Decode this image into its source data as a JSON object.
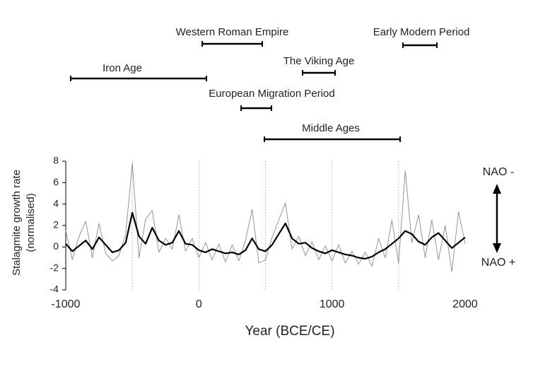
{
  "chart_data": {
    "type": "line",
    "xlabel": "Year (BCE/CE)",
    "ylabel": [
      "Stalagmite growth rate",
      "(normalised)"
    ],
    "annotations": {
      "top": "NAO -",
      "bottom": "NAO +"
    },
    "x": [
      -1000,
      -950,
      -900,
      -850,
      -800,
      -750,
      -700,
      -650,
      -600,
      -550,
      -500,
      -450,
      -400,
      -350,
      -300,
      -250,
      -200,
      -150,
      -100,
      -50,
      0,
      50,
      100,
      150,
      200,
      250,
      300,
      350,
      400,
      450,
      500,
      550,
      600,
      650,
      700,
      750,
      800,
      850,
      900,
      950,
      1000,
      1050,
      1100,
      1150,
      1200,
      1250,
      1300,
      1350,
      1400,
      1450,
      1500,
      1550,
      1600,
      1650,
      1700,
      1750,
      1800,
      1850,
      1900,
      1950,
      2000
    ],
    "series": [
      {
        "color": "#8a8a8a",
        "width": 0.9,
        "values": [
          1.5,
          -1.2,
          1.0,
          2.4,
          -1.0,
          2.2,
          -0.6,
          -1.3,
          -0.8,
          1.2,
          7.8,
          -1.0,
          2.6,
          3.4,
          -0.5,
          0.8,
          -0.2,
          3.0,
          -0.4,
          0.8,
          -1.0,
          0.4,
          -1.2,
          0.3,
          -1.4,
          0.2,
          -1.3,
          0.6,
          3.5,
          -1.5,
          -1.2,
          0.9,
          2.5,
          4.1,
          -0.2,
          1.0,
          -0.8,
          0.5,
          -1.2,
          0.1,
          -1.3,
          0.2,
          -1.5,
          -0.4,
          -1.6,
          -0.5,
          -1.8,
          0.8,
          -1.0,
          2.5,
          -1.5,
          7.1,
          0.4,
          3.0,
          -1.0,
          2.5,
          -1.2,
          2.0,
          -2.3,
          3.3,
          0.3
        ]
      },
      {
        "color": "#000000",
        "width": 2.2,
        "values": [
          0.3,
          -0.4,
          0.1,
          0.6,
          -0.2,
          0.9,
          0.2,
          -0.5,
          -0.3,
          0.4,
          3.2,
          1.0,
          0.3,
          1.8,
          0.6,
          0.2,
          0.4,
          1.5,
          0.3,
          0.2,
          -0.3,
          -0.5,
          -0.2,
          -0.4,
          -0.6,
          -0.5,
          -0.7,
          -0.3,
          0.8,
          -0.2,
          -0.4,
          0.2,
          1.2,
          2.2,
          0.8,
          0.3,
          0.4,
          -0.1,
          -0.4,
          -0.6,
          -0.3,
          -0.5,
          -0.7,
          -0.8,
          -1.0,
          -1.1,
          -0.9,
          -0.5,
          -0.2,
          0.3,
          0.8,
          1.5,
          1.2,
          0.5,
          0.2,
          0.9,
          1.3,
          0.6,
          -0.1,
          0.4,
          0.9
        ]
      }
    ],
    "xlim": [
      -1000,
      2000
    ],
    "xticks": [
      -1000,
      0,
      1000,
      2000
    ],
    "xgrid": [
      -500,
      0,
      500,
      1000,
      1500
    ],
    "ylim": [
      -4,
      8
    ],
    "yticks": [
      -4,
      -2,
      0,
      2,
      4,
      6,
      8
    ],
    "periods": [
      {
        "label": "Western Roman Empire",
        "start": 25,
        "end": 476
      },
      {
        "label": "Early Modern Period",
        "start": 1533,
        "end": 1788
      },
      {
        "label": "The Viking Age",
        "start": 779,
        "end": 1023
      },
      {
        "label": "Iron Age",
        "start": -963,
        "end": 57
      },
      {
        "label": "European Migration Period",
        "start": 317,
        "end": 545
      },
      {
        "label": "Middle Ages",
        "start": 492,
        "end": 1512
      }
    ]
  }
}
